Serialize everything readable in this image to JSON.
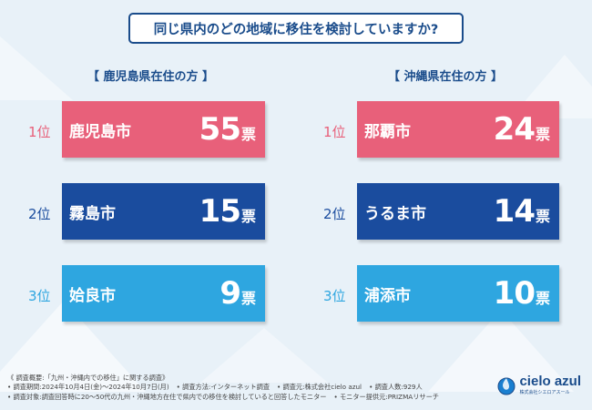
{
  "title": "同じ県内のどの地域に移住を検討していますか?",
  "colors": {
    "rank1": "#e8607a",
    "rank2": "#1a4c9e",
    "rank3": "#2ea6e0",
    "heading": "#1a4c8b"
  },
  "kagoshima": {
    "heading": "【 鹿児島県在住の方 】",
    "items": [
      {
        "rank": "1位",
        "city": "鹿児島市",
        "votes": "55",
        "unit": "票"
      },
      {
        "rank": "2位",
        "city": "霧島市",
        "votes": "15",
        "unit": "票"
      },
      {
        "rank": "3位",
        "city": "姶良市",
        "votes": "9",
        "unit": "票"
      }
    ]
  },
  "okinawa": {
    "heading": "【 沖縄県在住の方 】",
    "items": [
      {
        "rank": "1位",
        "city": "那覇市",
        "votes": "24",
        "unit": "票"
      },
      {
        "rank": "2位",
        "city": "うるま市",
        "votes": "14",
        "unit": "票"
      },
      {
        "rank": "3位",
        "city": "浦添市",
        "votes": "10",
        "unit": "票"
      }
    ]
  },
  "footer": {
    "line1": "《 調査概要:「九州・沖縄内での移住」に関する調査》",
    "period": "• 調査期間:2024年10月4日(金)〜2024年10月7日(月)",
    "method": "• 調査方法:インターネット調査",
    "org": "• 調査元:株式会社cielo azul",
    "count": "• 調査人数:929人",
    "target": "• 調査対象:調査回答時に20〜50代の九州・沖縄地方在住で県内での移住を検討していると回答したモニター",
    "provider": "• モニター提供元:PRIZMAリサーチ"
  },
  "logo": {
    "name": "cielo azul",
    "sub": "株式会社シエロアスール"
  }
}
